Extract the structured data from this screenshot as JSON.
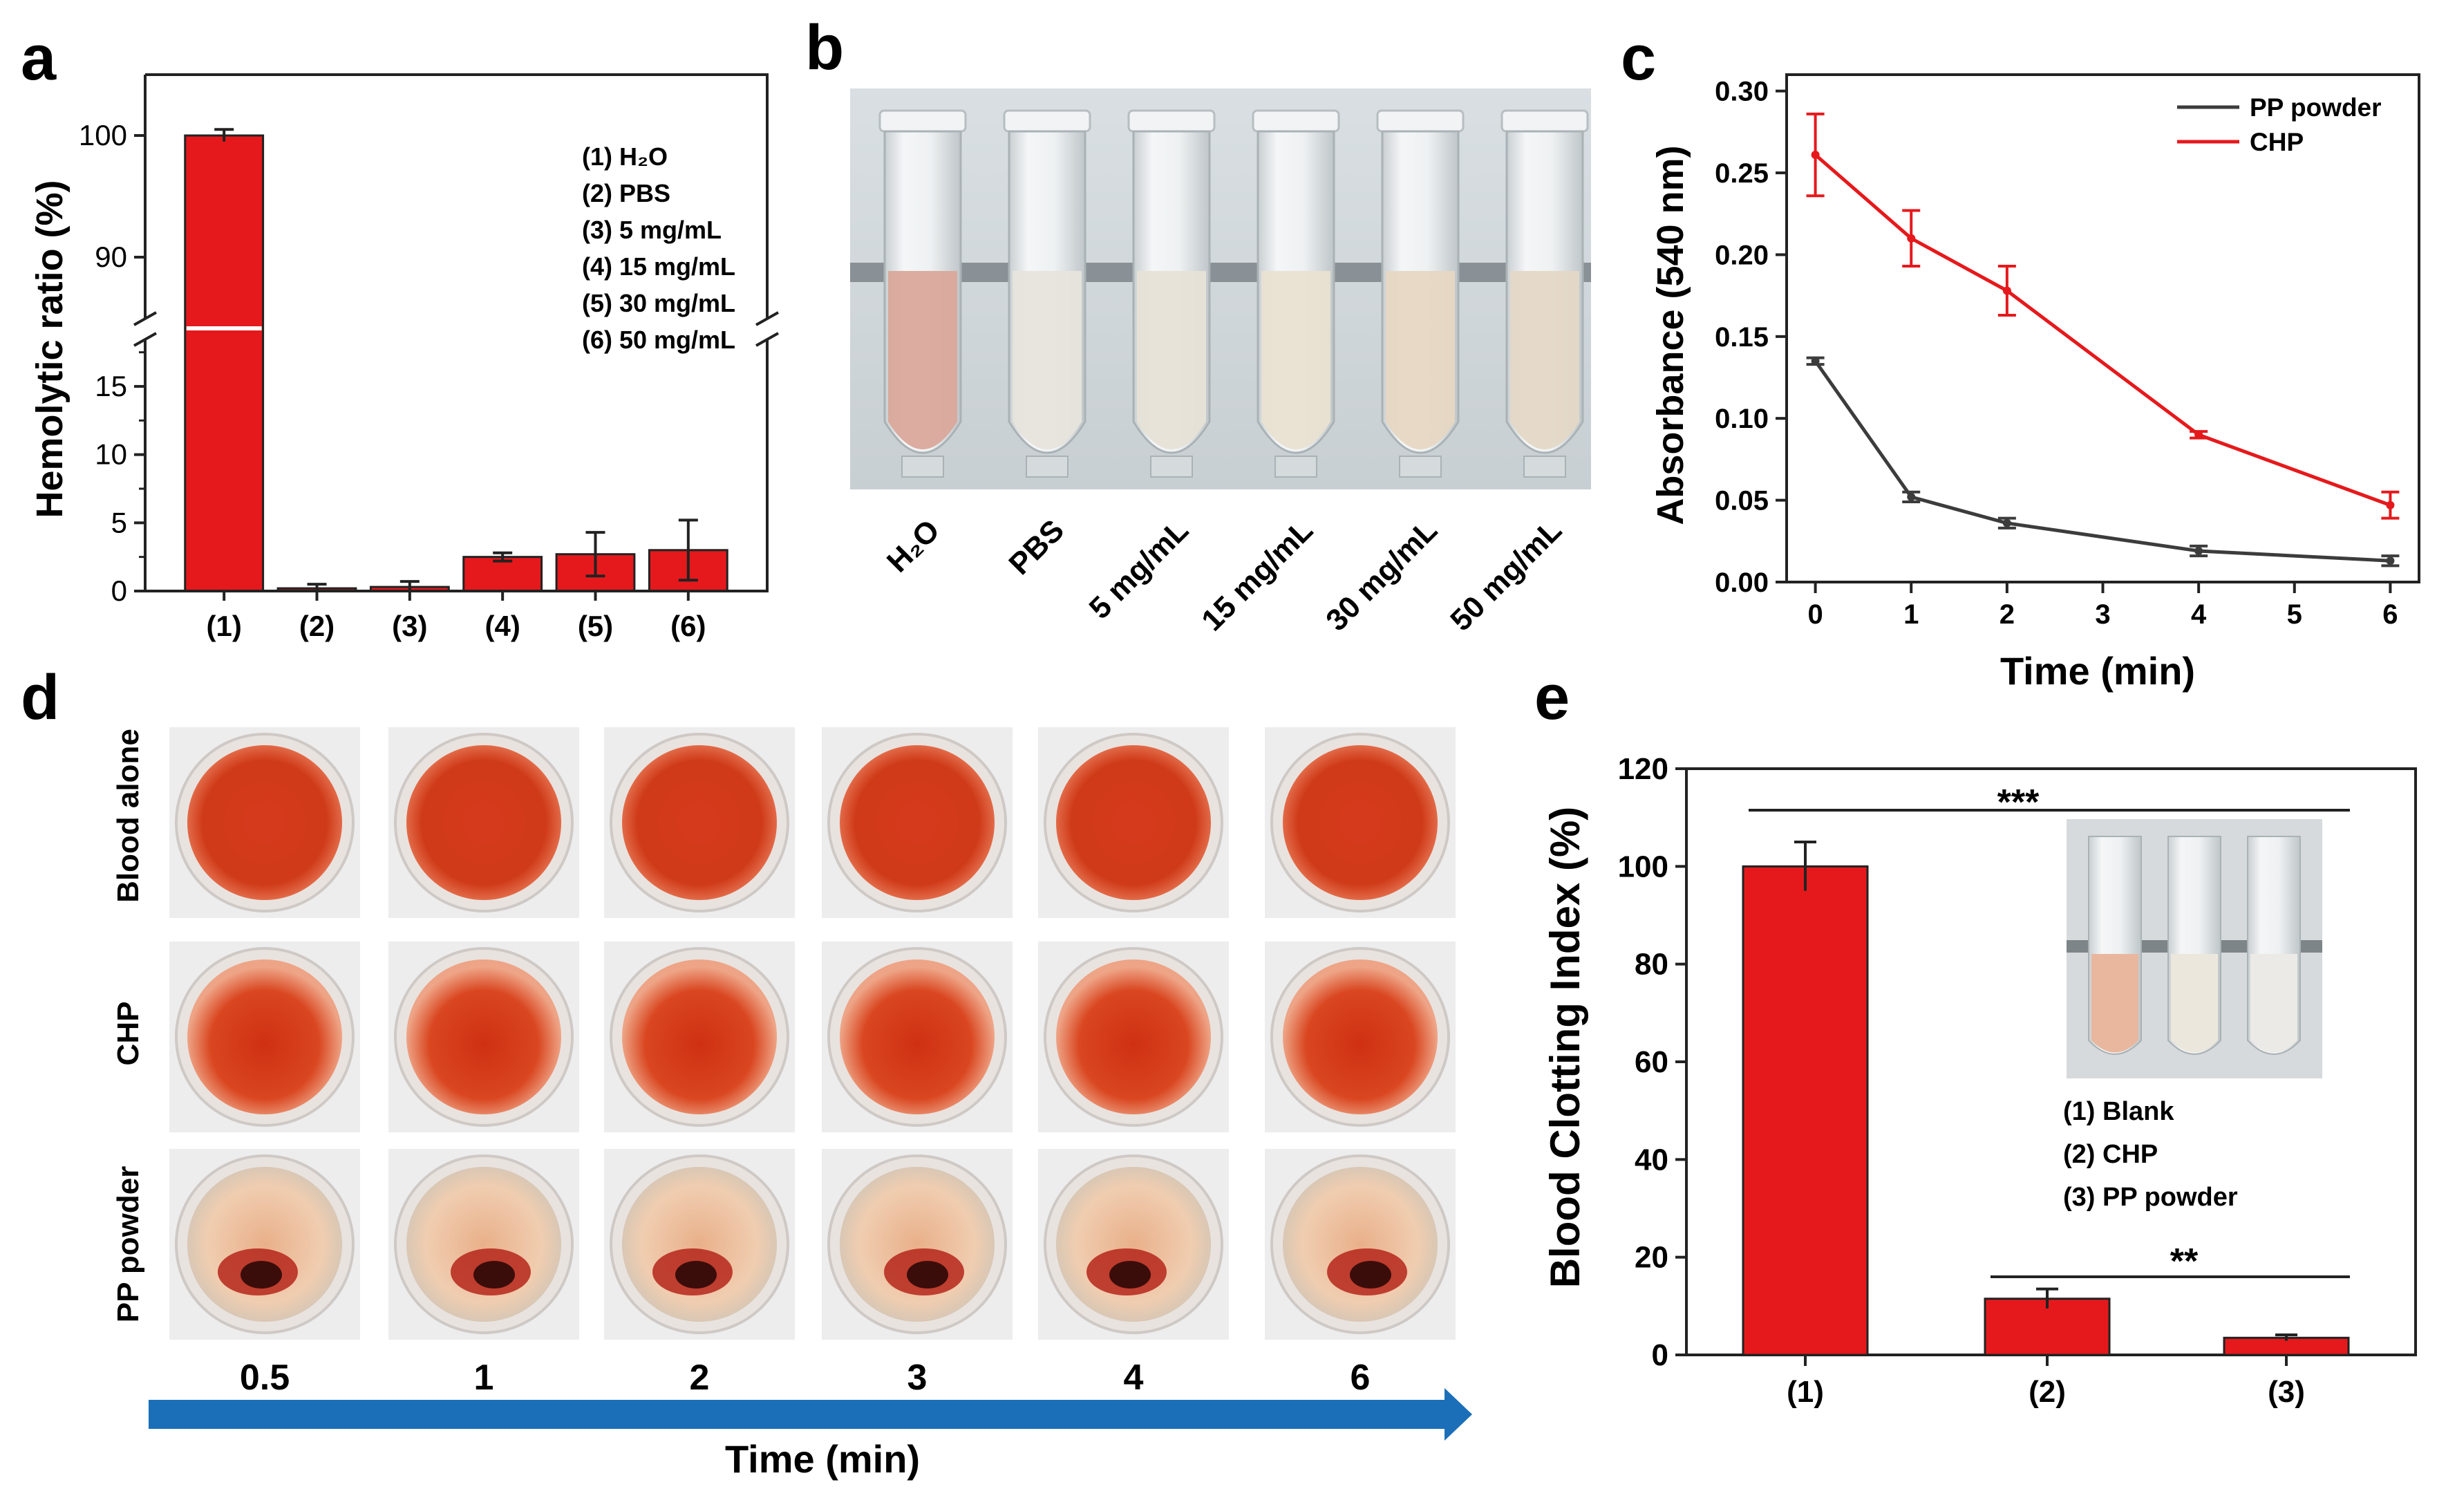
{
  "panel_letters": [
    "a",
    "b",
    "c",
    "d",
    "e"
  ],
  "chart_data": [
    {
      "panel": "a",
      "type": "bar",
      "ylabel": "Hemolytic ratio (%)",
      "categories": [
        "(1)",
        "(2)",
        "(3)",
        "(4)",
        "(5)",
        "(6)"
      ],
      "values": [
        100,
        0.2,
        0.3,
        2.5,
        2.7,
        3.0
      ],
      "errors": [
        0.5,
        0.3,
        0.4,
        0.3,
        1.6,
        2.2
      ],
      "y_axis_break": true,
      "ylim_lower": [
        0,
        19
      ],
      "ylim_upper": [
        85,
        105
      ],
      "yticks_lower": [
        "0",
        "5",
        "10",
        "15"
      ],
      "yticks_upper": [
        "90",
        "100"
      ],
      "color": "#e5191c",
      "legend": [
        "(1) H₂O",
        "(2) PBS",
        "(3) 5 mg/mL",
        "(4) 15 mg/mL",
        "(5) 30 mg/mL",
        "(6) 50 mg/mL"
      ]
    },
    {
      "panel": "c",
      "type": "line",
      "xlabel": "Time (min)",
      "ylabel": "Absorbance (540 nm)",
      "xlim": [
        -0.3,
        6.3
      ],
      "ylim": [
        0,
        0.31
      ],
      "xticks": [
        0,
        1,
        2,
        3,
        4,
        5,
        6
      ],
      "yticks": [
        "0.00",
        "0.05",
        "0.10",
        "0.15",
        "0.20",
        "0.25",
        "0.30"
      ],
      "legend_position": "top-right",
      "series": [
        {
          "name": "PP powder",
          "color": "#3c3c3c",
          "x": [
            0,
            1,
            2,
            4,
            6
          ],
          "y": [
            0.135,
            0.052,
            0.036,
            0.019,
            0.013
          ],
          "err": [
            0.002,
            0.003,
            0.003,
            0.003,
            0.003
          ]
        },
        {
          "name": "CHP",
          "color": "#e5191c",
          "x": [
            0,
            1,
            2,
            4,
            6
          ],
          "y": [
            0.261,
            0.21,
            0.178,
            0.09,
            0.047
          ],
          "err": [
            0.025,
            0.017,
            0.015,
            0.002,
            0.008
          ]
        }
      ]
    },
    {
      "panel": "e",
      "type": "bar",
      "ylabel": "Blood Clotting Index (%)",
      "categories": [
        "(1)",
        "(2)",
        "(3)"
      ],
      "values": [
        100,
        11.5,
        3.5
      ],
      "errors": [
        5,
        2,
        0.6
      ],
      "ylim": [
        0,
        120
      ],
      "yticks": [
        "0",
        "20",
        "40",
        "60",
        "80",
        "100",
        "120"
      ],
      "color": "#e5191c",
      "legend": [
        "(1) Blank",
        "(2) CHP",
        "(3) PP powder"
      ],
      "significance": [
        {
          "label": "***",
          "from": "(1)",
          "to": "(3)"
        },
        {
          "label": "**",
          "from": "(2)",
          "to": "(3)"
        }
      ]
    }
  ],
  "panel_b": {
    "tube_labels": [
      "H₂O",
      "PBS",
      "5 mg/mL",
      "15 mg/mL",
      "30 mg/mL",
      "50 mg/mL"
    ]
  },
  "panel_d": {
    "row_labels": [
      "Blood alone",
      "CHP",
      "PP powder"
    ],
    "time_labels": [
      "0.5",
      "1",
      "2",
      "3",
      "4",
      "6"
    ],
    "axis_label": "Time (min)",
    "arrow_color": "#1b6fb8"
  }
}
